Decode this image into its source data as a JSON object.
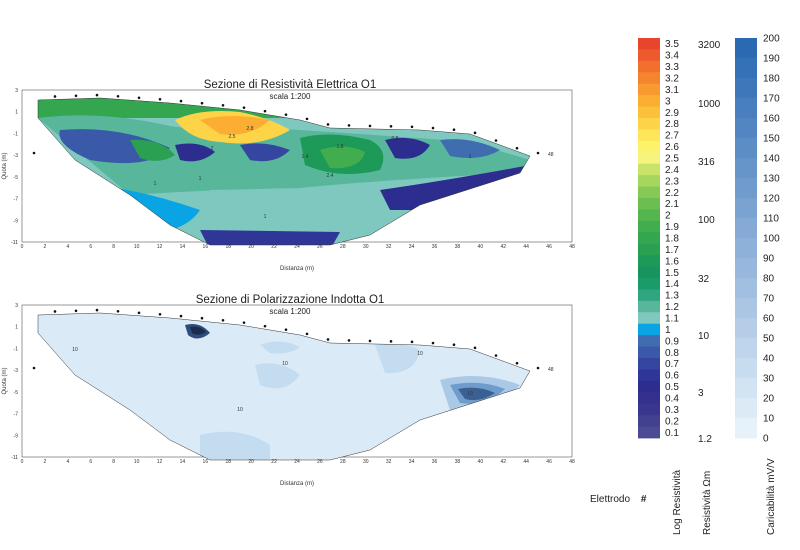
{
  "chart_data": [
    {
      "type": "heatmap",
      "title": "Sezione di Resistività  Elettrica  O1",
      "subtitle": "scala  1:200",
      "xlabel": "Distanza (m)",
      "ylabel": "Quota (m)",
      "xlim": [
        0,
        48
      ],
      "ylim": [
        -11,
        3
      ],
      "x_ticks": [
        "0",
        "2",
        "4",
        "6",
        "8",
        "10",
        "12",
        "14",
        "16",
        "18",
        "20",
        "22",
        "24",
        "26",
        "28",
        "30",
        "32",
        "34",
        "36",
        "38",
        "40",
        "42",
        "44",
        "46",
        "48"
      ],
      "y_ticks": [
        "3",
        "1",
        "-1",
        "-3",
        "-5",
        "-7",
        "-9",
        "-11"
      ],
      "electrode_label": "48",
      "contour_labels": [
        "2.5",
        "2.8",
        "2",
        "1",
        "1.4",
        "1.8",
        "2.4",
        "1",
        "0.8",
        "1",
        "1"
      ]
    },
    {
      "type": "heatmap",
      "title": "Sezione di Polarizzazione Indotta  O1",
      "subtitle": "scala  1:200",
      "xlabel": "Distanza (m)",
      "ylabel": "Quota (m)",
      "xlim": [
        0,
        48
      ],
      "ylim": [
        -11,
        3
      ],
      "x_ticks": [
        "0",
        "2",
        "4",
        "6",
        "8",
        "10",
        "12",
        "14",
        "16",
        "18",
        "20",
        "22",
        "24",
        "26",
        "28",
        "30",
        "32",
        "34",
        "36",
        "38",
        "40",
        "42",
        "44",
        "46",
        "48"
      ],
      "y_ticks": [
        "3",
        "1",
        "-1",
        "-3",
        "-5",
        "-7",
        "-9",
        "-11"
      ],
      "electrode_label": "48",
      "contour_labels": [
        "10",
        "10",
        "10",
        "10",
        "10"
      ]
    }
  ],
  "colorbar_log": {
    "labels": [
      "3.5",
      "3.4",
      "3.3",
      "3.2",
      "3.1",
      "3",
      "2.9",
      "2.8",
      "2.7",
      "2.6",
      "2.5",
      "2.4",
      "2.3",
      "2.2",
      "2.1",
      "2",
      "1.9",
      "1.8",
      "1.7",
      "1.6",
      "1.5",
      "1.4",
      "1.3",
      "1.2",
      "1.1",
      "1",
      "0.9",
      "0.8",
      "0.7",
      "0.6",
      "0.5",
      "0.4",
      "0.3",
      "0.2",
      "0.1"
    ],
    "colors": [
      "#e8462c",
      "#ee5a2e",
      "#f26f2e",
      "#f5842f",
      "#f89a30",
      "#fbae31",
      "#fcc13a",
      "#fdd447",
      "#fde65a",
      "#fdf26c",
      "#f6f47c",
      "#c9e36a",
      "#a6d65e",
      "#86c957",
      "#6bbe52",
      "#55b54f",
      "#42ad4e",
      "#35a650",
      "#2aa052",
      "#1e9a58",
      "#18955f",
      "#1b9a6a",
      "#2ea680",
      "#58b79b",
      "#7fc8bf",
      "#08a4e4",
      "#3f6db0",
      "#3a59a8",
      "#34469f",
      "#2f3697",
      "#2d2d8f",
      "#33308e",
      "#3b368d",
      "#43408f",
      "#4b4b94"
    ],
    "axis_label": "Log Resistività"
  },
  "colorbar_ohm": {
    "labels": [
      "3200",
      "1000",
      "316",
      "100",
      "32",
      "10",
      "3",
      "1.2"
    ],
    "axis_label": "Resistività  Ωm"
  },
  "colorbar_ip": {
    "labels": [
      "200",
      "190",
      "180",
      "170",
      "160",
      "150",
      "140",
      "130",
      "120",
      "110",
      "100",
      "90",
      "80",
      "70",
      "60",
      "50",
      "40",
      "30",
      "20",
      "10",
      "0"
    ],
    "axis_label": "Caricabilità mV/V"
  },
  "legend": {
    "electrode_text": "Elettrodo",
    "electrode_symbol": "#"
  },
  "colors": {
    "background": "#ffffff",
    "ip_base": "#daeaf7",
    "ip_dark": "#2f4d7a"
  }
}
